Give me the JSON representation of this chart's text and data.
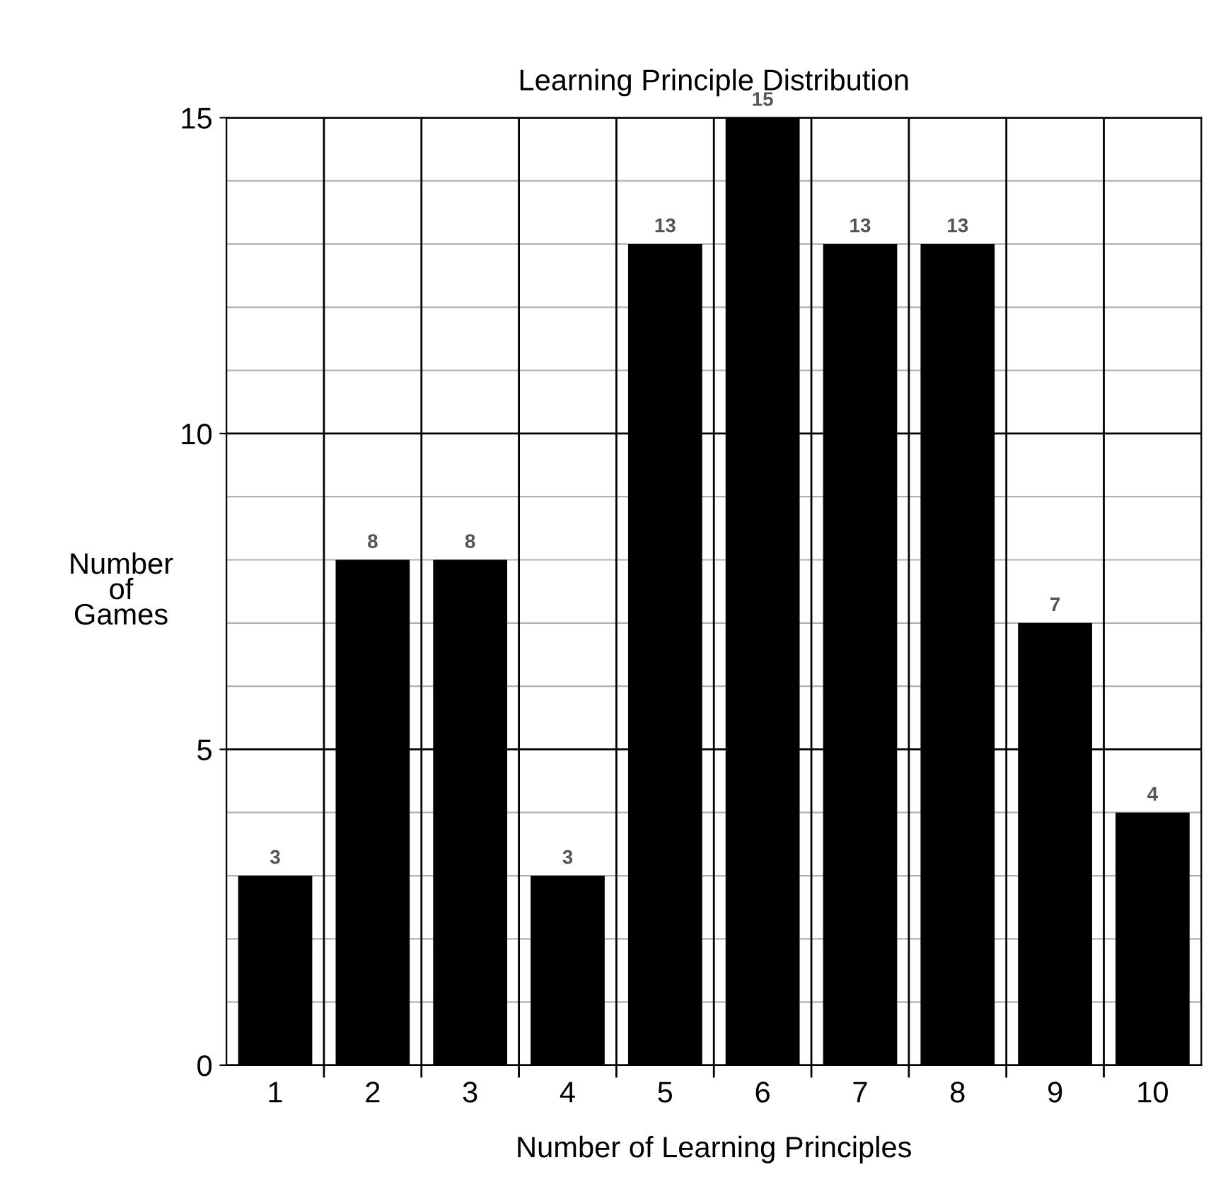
{
  "chart_data": {
    "type": "bar",
    "title": "Learning Principle Distribution",
    "xlabel": "Number of Learning Principles",
    "ylabel": "Number\nof\nGames",
    "categories": [
      "1",
      "2",
      "3",
      "4",
      "5",
      "6",
      "7",
      "8",
      "9",
      "10"
    ],
    "values": [
      3,
      8,
      8,
      3,
      13,
      15,
      13,
      13,
      7,
      4
    ],
    "color": "#000000",
    "data_labels": true,
    "ylim": [
      0,
      15
    ],
    "yticks": [
      0,
      {
        "value": 1,
        "label": null
      },
      {
        "value": 2,
        "label": null
      },
      {
        "value": 3,
        "label": null
      },
      {
        "value": 4,
        "label": null
      },
      5,
      {
        "value": 6,
        "label": null
      },
      {
        "value": 7,
        "label": null
      },
      {
        "value": 8,
        "label": null
      },
      {
        "value": 9,
        "label": null
      },
      10,
      {
        "value": 11,
        "label": null
      },
      {
        "value": 12,
        "label": null
      },
      {
        "value": 13,
        "label": null
      },
      {
        "value": 14,
        "label": null
      },
      15
    ],
    "grid": true,
    "legend": false
  }
}
